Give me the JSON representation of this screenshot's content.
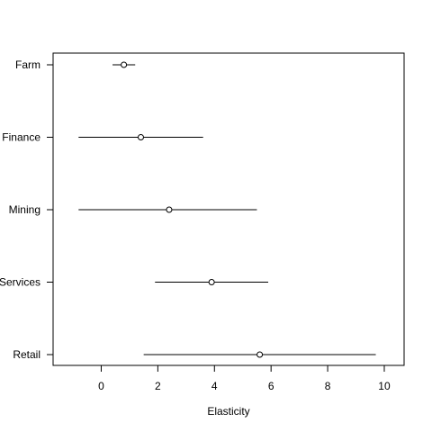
{
  "chart_data": {
    "type": "scatter",
    "xlabel": "Elasticity",
    "ylabel": "",
    "title": "",
    "xlim": [
      -1.7,
      10.7
    ],
    "x_ticks": [
      0,
      2,
      4,
      6,
      8,
      10
    ],
    "x_tick_labels": [
      "0",
      "2",
      "4",
      "6",
      "8",
      "10"
    ],
    "grid": false,
    "categories": [
      "Farm",
      "Finance",
      "Mining",
      "Services",
      "Retail"
    ],
    "estimates": [
      0.8,
      1.4,
      2.4,
      3.9,
      5.6
    ],
    "lower": [
      0.4,
      -0.8,
      -0.8,
      1.9,
      1.5
    ],
    "upper": [
      1.2,
      3.6,
      5.5,
      5.9,
      9.7
    ]
  }
}
